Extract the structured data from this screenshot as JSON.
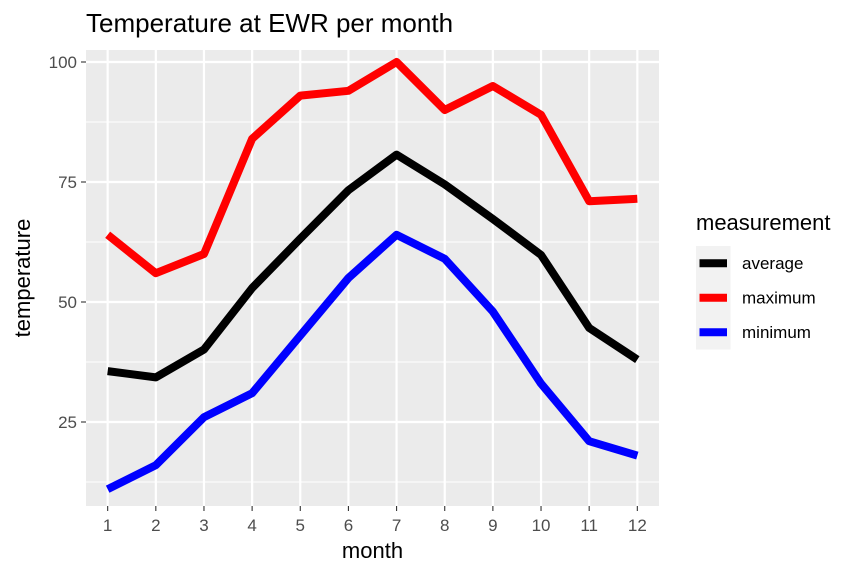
{
  "chart_data": {
    "type": "line",
    "title": "Temperature at EWR per month",
    "xlabel": "month",
    "ylabel": "temperature",
    "x": [
      1,
      2,
      3,
      4,
      5,
      6,
      7,
      8,
      9,
      10,
      11,
      12
    ],
    "x_ticks": [
      "1",
      "2",
      "3",
      "4",
      "5",
      "6",
      "7",
      "8",
      "9",
      "10",
      "11",
      "12"
    ],
    "y_ticks": [
      "25",
      "50",
      "75",
      "100"
    ],
    "xlim": [
      0.55,
      12.45
    ],
    "ylim": [
      7.5,
      102.5
    ],
    "grid": true,
    "legend": {
      "title": "measurement",
      "position": "right"
    },
    "series": [
      {
        "name": "average",
        "color": "#000000",
        "values": [
          35.6,
          34.3,
          40.1,
          52.9,
          63.2,
          73.3,
          80.7,
          74.5,
          67.3,
          59.8,
          44.6,
          38.0
        ]
      },
      {
        "name": "maximum",
        "color": "#ff0000",
        "values": [
          64.0,
          56.0,
          60.0,
          84.0,
          93.0,
          94.0,
          100.0,
          90.0,
          95.0,
          89.0,
          71.0,
          71.5
        ]
      },
      {
        "name": "minimum",
        "color": "#0000ff",
        "values": [
          11.0,
          16.0,
          26.0,
          31.0,
          43.0,
          55.0,
          64.0,
          59.0,
          48.0,
          33.0,
          21.0,
          18.0
        ]
      }
    ]
  }
}
